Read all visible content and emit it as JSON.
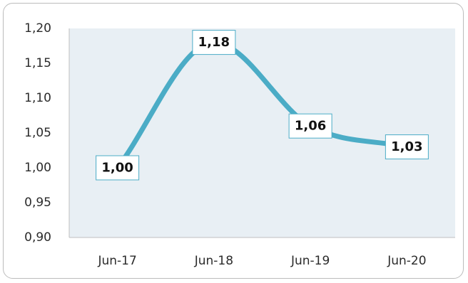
{
  "chart_data": {
    "type": "line",
    "title": "",
    "xlabel": "",
    "ylabel": "",
    "categories": [
      "Jun-17",
      "Jun-18",
      "Jun-19",
      "Jun-20"
    ],
    "series": [
      {
        "values": [
          1.0,
          1.18,
          1.06,
          1.03
        ],
        "labels": [
          "1,00",
          "1,18",
          "1,06",
          "1,03"
        ],
        "color": "#4bacc6",
        "smooth": true
      }
    ],
    "ylim": [
      0.9,
      1.2
    ],
    "yticks": [
      0.9,
      0.95,
      1.0,
      1.05,
      1.1,
      1.15,
      1.2
    ],
    "ytick_labels": [
      "0,90",
      "0,95",
      "1,00",
      "1,05",
      "1,10",
      "1,15",
      "1,20"
    ],
    "grid": false,
    "legend": "none",
    "plot_background": "#e8eff4",
    "label_border_color": "#4bacc6"
  }
}
